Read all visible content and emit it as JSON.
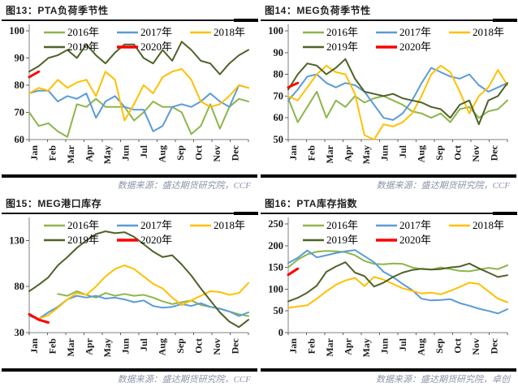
{
  "page": {
    "background": "#ffffff"
  },
  "x_month_labels": [
    "Jan",
    "Feb",
    "Mar",
    "Apr",
    "May",
    "Jun",
    "Jul",
    "Aug",
    "Sep",
    "Oct",
    "Nov",
    "Dec"
  ],
  "legend_years": [
    "2016年",
    "2017年",
    "2018年",
    "2019年",
    "2020年"
  ],
  "series_colors": {
    "2016": "#8DB54B",
    "2017": "#5B9BD5",
    "2018": "#FFC000",
    "2019": "#4F6228",
    "2020": "#FF0000"
  },
  "chart_data": [
    {
      "type": "line",
      "figure_label": "图13",
      "title": "图13：PTA负荷季节性",
      "source": "数据来源：盛达期货研究院，CCF",
      "legend_position": "top-left-inside",
      "grid": false,
      "x_axis": {
        "months": [
          "Jan",
          "Feb",
          "Mar",
          "Apr",
          "May",
          "Jun",
          "Jul",
          "Aug",
          "Sep",
          "Oct",
          "Nov",
          "Dec"
        ],
        "points_per_month": 2
      },
      "y_axis": {
        "min": 60,
        "max": 100,
        "ticks": [
          60,
          70,
          80,
          90,
          100
        ]
      },
      "series": [
        {
          "name": "2016年",
          "color": "#8DB54B",
          "line_width": 2,
          "values": [
            70,
            65,
            66,
            63,
            61,
            73,
            72,
            75,
            72,
            72,
            72,
            67,
            70,
            74,
            72,
            72,
            70,
            62,
            65,
            73,
            64,
            72,
            75,
            74
          ]
        },
        {
          "name": "2017年",
          "color": "#5B9BD5",
          "line_width": 2,
          "values": [
            77,
            78,
            78,
            74,
            76,
            75,
            77,
            68,
            74,
            76,
            72,
            71,
            71,
            63,
            65,
            72,
            73,
            72,
            74,
            77,
            74,
            72,
            80,
            79
          ]
        },
        {
          "name": "2018年",
          "color": "#FFC000",
          "line_width": 2,
          "values": [
            77,
            79,
            78,
            82,
            79,
            81,
            82,
            76,
            85,
            82,
            67,
            73,
            80,
            77,
            83,
            85,
            86,
            82,
            74,
            72,
            73,
            76,
            80,
            79
          ]
        },
        {
          "name": "2019年",
          "color": "#4F6228",
          "line_width": 2,
          "values": [
            85,
            87,
            90,
            91,
            93,
            90,
            95,
            91,
            88,
            92,
            95,
            95,
            90,
            88,
            93,
            89,
            96,
            93,
            89,
            88,
            84,
            88,
            91,
            93
          ]
        },
        {
          "name": "2020年",
          "color": "#FF0000",
          "line_width": 3,
          "values": [
            83,
            85
          ]
        }
      ]
    },
    {
      "type": "line",
      "figure_label": "图14",
      "title": "图14：MEG负荷季节性",
      "source": "数据来源：盛达期货研究院，CCF",
      "legend_position": "top-left-inside",
      "grid": false,
      "x_axis": {
        "months": [
          "Jan",
          "Feb",
          "Mar",
          "Apr",
          "May",
          "Jun",
          "Jul",
          "Aug",
          "Sep",
          "Oct",
          "Nov",
          "Dec"
        ],
        "points_per_month": 2
      },
      "y_axis": {
        "min": 50,
        "max": 100,
        "ticks": [
          50,
          60,
          70,
          80,
          90,
          100
        ]
      },
      "series": [
        {
          "name": "2016年",
          "color": "#8DB54B",
          "line_width": 2,
          "values": [
            69,
            58,
            65,
            72,
            60,
            68,
            65,
            70,
            67,
            69,
            70,
            68,
            66,
            63,
            62,
            60,
            62,
            58,
            64,
            65,
            60,
            63,
            64,
            68
          ]
        },
        {
          "name": "2017年",
          "color": "#5B9BD5",
          "line_width": 2,
          "values": [
            68,
            73,
            79,
            80,
            76,
            74,
            76,
            75,
            72,
            66,
            60,
            59,
            62,
            68,
            76,
            83,
            81,
            79,
            78,
            80,
            75,
            72,
            74,
            76
          ]
        },
        {
          "name": "2018年",
          "color": "#FFC000",
          "line_width": 2,
          "values": [
            70,
            68,
            74,
            80,
            84,
            81,
            80,
            71,
            52,
            50,
            57,
            56,
            58,
            62,
            70,
            80,
            84,
            81,
            72,
            62,
            70,
            74,
            82,
            75
          ]
        },
        {
          "name": "2019年",
          "color": "#4F6228",
          "line_width": 2,
          "values": [
            73,
            80,
            85,
            84,
            80,
            83,
            87,
            78,
            72,
            71,
            70,
            71,
            69,
            68,
            67,
            65,
            64,
            60,
            66,
            68,
            57,
            68,
            70,
            76
          ]
        },
        {
          "name": "2020年",
          "color": "#FF0000",
          "line_width": 3,
          "values": [
            74,
            76
          ]
        }
      ]
    },
    {
      "type": "line",
      "figure_label": "图15",
      "title": "图15：MEG港口库存",
      "source": "数据来源：盛达期货研究院，CCF",
      "legend_position": "top-left-inside",
      "grid": false,
      "x_axis": {
        "months": [
          "Jan",
          "Feb",
          "Mar",
          "Apr",
          "May",
          "Jun",
          "Jul",
          "Aug",
          "Sep",
          "Oct",
          "Nov",
          "Dec"
        ],
        "points_per_month": 2
      },
      "y_axis": {
        "min": 30,
        "max": 148,
        "ticks": [
          30,
          80,
          130
        ]
      },
      "series": [
        {
          "name": "2016年",
          "color": "#8DB54B",
          "line_width": 2,
          "values": [
            null,
            null,
            null,
            72,
            70,
            75,
            71,
            68,
            73,
            70,
            72,
            70,
            71,
            68,
            64,
            61,
            63,
            65,
            60,
            58,
            56,
            53,
            50,
            48
          ]
        },
        {
          "name": "2017年",
          "color": "#5B9BD5",
          "line_width": 2,
          "values": [
            48,
            45,
            52,
            58,
            66,
            70,
            68,
            70,
            67,
            68,
            66,
            63,
            65,
            59,
            57,
            58,
            61,
            59,
            62,
            58,
            56,
            53,
            48,
            52
          ]
        },
        {
          "name": "2018年",
          "color": "#FFC000",
          "line_width": 2,
          "values": [
            50,
            45,
            49,
            57,
            66,
            73,
            71,
            80,
            91,
            99,
            103,
            99,
            91,
            83,
            78,
            68,
            60,
            65,
            70,
            75,
            74,
            71,
            73,
            84
          ]
        },
        {
          "name": "2019年",
          "color": "#4F6228",
          "line_width": 2,
          "values": [
            75,
            82,
            90,
            103,
            112,
            122,
            130,
            137,
            140,
            138,
            139,
            134,
            126,
            118,
            112,
            114,
            104,
            92,
            78,
            65,
            52,
            42,
            36,
            44
          ]
        },
        {
          "name": "2020年",
          "color": "#FF0000",
          "line_width": 3,
          "values": [
            50,
            44,
            41
          ]
        }
      ]
    },
    {
      "type": "line",
      "figure_label": "图16",
      "title": "图16：PTA库存指数",
      "source": "数据来源：盛达期货研究院，卓创",
      "legend_position": "top-left-inside",
      "grid": false,
      "x_axis": {
        "months": [
          "Jan",
          "Feb",
          "Mar",
          "Apr",
          "May",
          "Jun",
          "Jul",
          "Aug",
          "Sep",
          "Oct",
          "Nov",
          "Dec"
        ],
        "points_per_month": 2
      },
      "y_axis": {
        "min": 0,
        "max": 250,
        "ticks": [
          0,
          50,
          100,
          150,
          200,
          250
        ]
      },
      "series": [
        {
          "name": "2016年",
          "color": "#8DB54B",
          "line_width": 2,
          "values": [
            150,
            168,
            180,
            186,
            188,
            187,
            185,
            178,
            165,
            158,
            157,
            159,
            158,
            150,
            146,
            145,
            150,
            146,
            142,
            141,
            145,
            149,
            146,
            155
          ]
        },
        {
          "name": "2017年",
          "color": "#5B9BD5",
          "line_width": 2,
          "values": [
            160,
            172,
            189,
            173,
            178,
            183,
            187,
            190,
            176,
            162,
            140,
            128,
            112,
            98,
            78,
            74,
            75,
            77,
            68,
            62,
            55,
            50,
            44,
            54
          ]
        },
        {
          "name": "2018年",
          "color": "#FFC000",
          "line_width": 2,
          "values": [
            57,
            60,
            63,
            78,
            95,
            110,
            120,
            126,
            107,
            128,
            122,
            112,
            102,
            96,
            90,
            92,
            88,
            96,
            105,
            115,
            112,
            95,
            78,
            70
          ]
        },
        {
          "name": "2019年",
          "color": "#4F6228",
          "line_width": 2,
          "values": [
            72,
            80,
            92,
            108,
            140,
            152,
            162,
            138,
            130,
            106,
            115,
            128,
            138,
            144,
            147,
            145,
            146,
            150,
            152,
            159,
            148,
            138,
            128,
            132
          ]
        },
        {
          "name": "2020年",
          "color": "#FF0000",
          "line_width": 3,
          "values": [
            133,
            147
          ]
        }
      ]
    }
  ]
}
